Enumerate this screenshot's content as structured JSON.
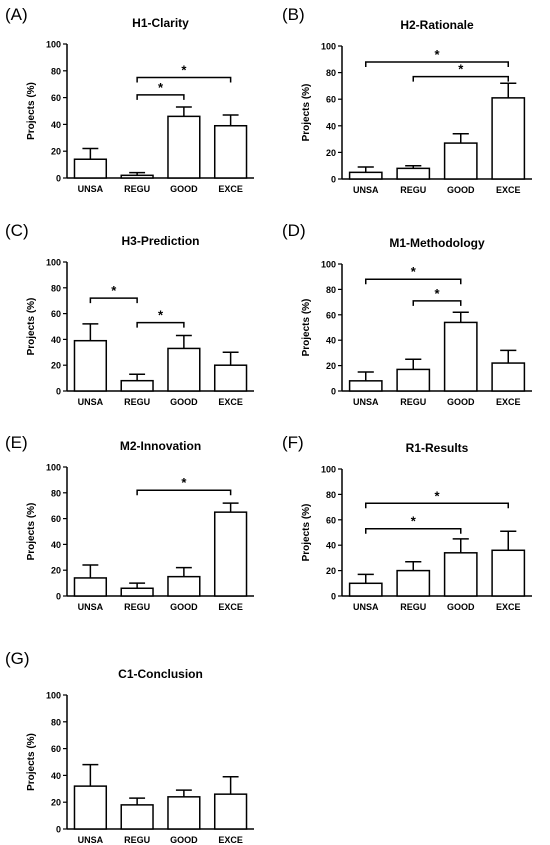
{
  "chart_data": [
    {
      "panel_label": "(A)",
      "type": "bar",
      "title": "H1-Clarity",
      "ylabel": "Projects (%)",
      "xlabel": "",
      "categories": [
        "UNSA",
        "REGU",
        "GOOD",
        "EXCE"
      ],
      "values": [
        14,
        2,
        46,
        39
      ],
      "errors": [
        8,
        2,
        7,
        8
      ],
      "ylim": [
        0,
        100
      ],
      "yticks": [
        0,
        20,
        40,
        60,
        80,
        100
      ],
      "grid": false,
      "significance": [
        {
          "from": "REGU",
          "to": "GOOD",
          "label": "*",
          "level": 62
        },
        {
          "from": "REGU",
          "to": "EXCE",
          "label": "*",
          "level": 75
        }
      ]
    },
    {
      "panel_label": "(B)",
      "type": "bar",
      "title": "H2-Rationale",
      "ylabel": "Projects (%)",
      "xlabel": "",
      "categories": [
        "UNSA",
        "REGU",
        "GOOD",
        "EXCE"
      ],
      "values": [
        5,
        8,
        27,
        61
      ],
      "errors": [
        4,
        2,
        7,
        11
      ],
      "ylim": [
        0,
        100
      ],
      "yticks": [
        0,
        20,
        40,
        60,
        80,
        100
      ],
      "grid": false,
      "significance": [
        {
          "from": "REGU",
          "to": "EXCE",
          "label": "*",
          "level": 77
        },
        {
          "from": "UNSA",
          "to": "EXCE",
          "label": "*",
          "level": 88
        }
      ]
    },
    {
      "panel_label": "(C)",
      "type": "bar",
      "title": "H3-Prediction",
      "ylabel": "Projects (%)",
      "xlabel": "",
      "categories": [
        "UNSA",
        "REGU",
        "GOOD",
        "EXCE"
      ],
      "values": [
        39,
        8,
        33,
        20
      ],
      "errors": [
        13,
        5,
        10,
        10
      ],
      "ylim": [
        0,
        100
      ],
      "yticks": [
        0,
        20,
        40,
        60,
        80,
        100
      ],
      "grid": false,
      "significance": [
        {
          "from": "UNSA",
          "to": "REGU",
          "label": "*",
          "level": 72
        },
        {
          "from": "REGU",
          "to": "GOOD",
          "label": "*",
          "level": 53
        }
      ]
    },
    {
      "panel_label": "(D)",
      "type": "bar",
      "title": "M1-Methodology",
      "ylabel": "Projects (%)",
      "xlabel": "",
      "categories": [
        "UNSA",
        "REGU",
        "GOOD",
        "EXCE"
      ],
      "values": [
        8,
        17,
        54,
        22
      ],
      "errors": [
        7,
        8,
        8,
        10
      ],
      "ylim": [
        0,
        100
      ],
      "yticks": [
        0,
        20,
        40,
        60,
        80,
        100
      ],
      "grid": false,
      "significance": [
        {
          "from": "REGU",
          "to": "GOOD",
          "label": "*",
          "level": 71
        },
        {
          "from": "UNSA",
          "to": "GOOD",
          "label": "*",
          "level": 88
        }
      ]
    },
    {
      "panel_label": "(E)",
      "type": "bar",
      "title": "M2-Innovation",
      "ylabel": "Projects (%)",
      "xlabel": "",
      "categories": [
        "UNSA",
        "REGU",
        "GOOD",
        "EXCE"
      ],
      "values": [
        14,
        6,
        15,
        65
      ],
      "errors": [
        10,
        4,
        7,
        7
      ],
      "ylim": [
        0,
        100
      ],
      "yticks": [
        0,
        20,
        40,
        60,
        80,
        100
      ],
      "grid": false,
      "significance": [
        {
          "from": "REGU",
          "to": "EXCE",
          "label": "*",
          "level": 82
        }
      ]
    },
    {
      "panel_label": "(F)",
      "type": "bar",
      "title": "R1-Results",
      "ylabel": "Projects (%)",
      "xlabel": "",
      "categories": [
        "UNSA",
        "REGU",
        "GOOD",
        "EXCE"
      ],
      "values": [
        10,
        20,
        34,
        36
      ],
      "errors": [
        7,
        7,
        11,
        15
      ],
      "ylim": [
        0,
        100
      ],
      "yticks": [
        0,
        20,
        40,
        60,
        80,
        100
      ],
      "grid": false,
      "significance": [
        {
          "from": "UNSA",
          "to": "GOOD",
          "label": "*",
          "level": 53
        },
        {
          "from": "UNSA",
          "to": "EXCE",
          "label": "*",
          "level": 73
        }
      ]
    },
    {
      "panel_label": "(G)",
      "type": "bar",
      "title": "C1-Conclusion",
      "ylabel": "Projects (%)",
      "xlabel": "",
      "categories": [
        "UNSA",
        "REGU",
        "GOOD",
        "EXCE"
      ],
      "values": [
        32,
        18,
        24,
        26
      ],
      "errors": [
        16,
        5,
        5,
        13
      ],
      "ylim": [
        0,
        100
      ],
      "yticks": [
        0,
        20,
        40,
        60,
        80,
        100
      ],
      "grid": false,
      "significance": []
    }
  ]
}
